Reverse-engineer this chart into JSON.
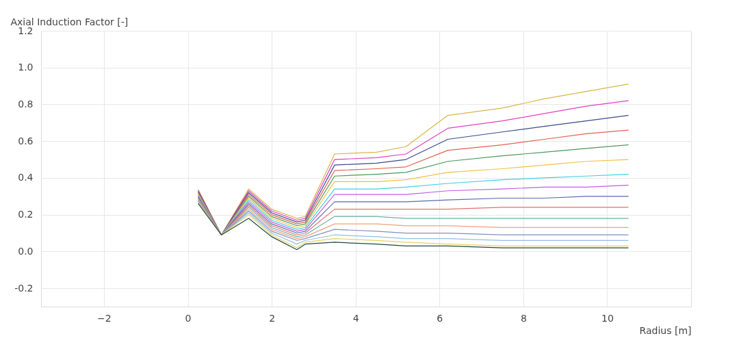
{
  "chart_data": {
    "type": "line",
    "xlabel": "Radius [m]",
    "ylabel": "Axial Induction Factor [-]",
    "x": [
      0.25,
      0.8,
      1.45,
      2.0,
      2.6,
      2.8,
      3.5,
      4.5,
      5.2,
      6.2,
      7.5,
      8.5,
      9.5,
      10.5
    ],
    "xlim": [
      -3.5,
      12
    ],
    "xticks": [
      -2,
      0,
      2,
      4,
      6,
      8,
      10
    ],
    "ylim": [
      -0.3,
      1.2
    ],
    "yticks": [
      {
        "value": -0.2,
        "label": "-0.2"
      },
      {
        "value": 0,
        "label": "0.0"
      },
      {
        "value": 0.2,
        "label": "0.2"
      },
      {
        "value": 0.4,
        "label": "0.4"
      },
      {
        "value": 0.6,
        "label": "0.6"
      },
      {
        "value": 0.8,
        "label": "0.8"
      },
      {
        "value": 1.0,
        "label": "1.0"
      },
      {
        "value": 1.2,
        "label": "1.2"
      }
    ],
    "grid": true,
    "legend": false,
    "marker": "none",
    "line_style": "solid",
    "series": [
      {
        "color": "#d9b44a",
        "values": [
          0.335,
          0.09,
          0.34,
          0.23,
          0.18,
          0.19,
          0.53,
          0.54,
          0.57,
          0.74,
          0.78,
          0.83,
          0.87,
          0.91
        ]
      },
      {
        "color": "#e040c0",
        "values": [
          0.33,
          0.09,
          0.33,
          0.22,
          0.17,
          0.18,
          0.5,
          0.51,
          0.53,
          0.67,
          0.71,
          0.75,
          0.79,
          0.82
        ]
      },
      {
        "color": "#3a4a8a",
        "values": [
          0.325,
          0.09,
          0.32,
          0.21,
          0.16,
          0.17,
          0.47,
          0.48,
          0.5,
          0.61,
          0.65,
          0.68,
          0.71,
          0.74
        ]
      },
      {
        "color": "#e06050",
        "values": [
          0.32,
          0.09,
          0.31,
          0.2,
          0.15,
          0.16,
          0.44,
          0.45,
          0.46,
          0.55,
          0.58,
          0.61,
          0.64,
          0.66
        ]
      },
      {
        "color": "#4a9a5a",
        "values": [
          0.315,
          0.09,
          0.3,
          0.19,
          0.14,
          0.15,
          0.41,
          0.42,
          0.43,
          0.49,
          0.52,
          0.54,
          0.56,
          0.58
        ]
      },
      {
        "color": "#f0c040",
        "values": [
          0.31,
          0.09,
          0.29,
          0.18,
          0.13,
          0.14,
          0.38,
          0.38,
          0.39,
          0.43,
          0.45,
          0.47,
          0.49,
          0.5
        ]
      },
      {
        "color": "#40d0e0",
        "values": [
          0.305,
          0.09,
          0.28,
          0.17,
          0.12,
          0.13,
          0.34,
          0.34,
          0.35,
          0.37,
          0.39,
          0.4,
          0.41,
          0.42
        ]
      },
      {
        "color": "#c060e0",
        "values": [
          0.3,
          0.09,
          0.27,
          0.16,
          0.11,
          0.12,
          0.31,
          0.31,
          0.31,
          0.33,
          0.34,
          0.35,
          0.35,
          0.36
        ]
      },
      {
        "color": "#5a6ab0",
        "values": [
          0.295,
          0.09,
          0.26,
          0.15,
          0.1,
          0.11,
          0.27,
          0.27,
          0.27,
          0.28,
          0.29,
          0.29,
          0.3,
          0.3
        ]
      },
      {
        "color": "#e07070",
        "values": [
          0.29,
          0.09,
          0.25,
          0.14,
          0.09,
          0.1,
          0.23,
          0.23,
          0.23,
          0.23,
          0.24,
          0.24,
          0.24,
          0.24
        ]
      },
      {
        "color": "#70b0a0",
        "values": [
          0.285,
          0.09,
          0.24,
          0.13,
          0.08,
          0.09,
          0.19,
          0.19,
          0.18,
          0.18,
          0.18,
          0.18,
          0.18,
          0.18
        ]
      },
      {
        "color": "#f0a080",
        "values": [
          0.28,
          0.09,
          0.23,
          0.12,
          0.07,
          0.08,
          0.15,
          0.15,
          0.14,
          0.14,
          0.13,
          0.13,
          0.13,
          0.13
        ]
      },
      {
        "color": "#8090c0",
        "values": [
          0.275,
          0.09,
          0.22,
          0.11,
          0.06,
          0.07,
          0.12,
          0.11,
          0.1,
          0.1,
          0.09,
          0.09,
          0.09,
          0.09
        ]
      },
      {
        "color": "#90c0e0",
        "values": [
          0.27,
          0.09,
          0.21,
          0.1,
          0.04,
          0.06,
          0.09,
          0.08,
          0.07,
          0.07,
          0.06,
          0.06,
          0.06,
          0.06
        ]
      },
      {
        "color": "#e8d060",
        "values": [
          0.265,
          0.09,
          0.2,
          0.09,
          0.02,
          0.05,
          0.07,
          0.06,
          0.05,
          0.04,
          0.03,
          0.03,
          0.03,
          0.03
        ]
      },
      {
        "color": "#1f4a3a",
        "values": [
          0.26,
          0.09,
          0.18,
          0.08,
          0.01,
          0.04,
          0.05,
          0.04,
          0.03,
          0.03,
          0.02,
          0.02,
          0.02,
          0.02
        ]
      }
    ]
  }
}
